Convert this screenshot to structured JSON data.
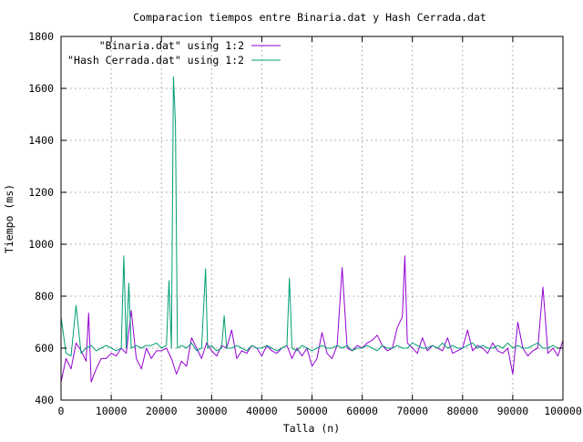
{
  "chart_data": {
    "type": "line",
    "title": "Comparacion tiempos entre Binaria.dat y Hash Cerrada.dat",
    "xlabel": "Talla (n)",
    "ylabel": "Tiempo (ms)",
    "xlim": [
      0,
      100000
    ],
    "ylim": [
      400,
      1800
    ],
    "x_ticks": [
      0,
      10000,
      20000,
      30000,
      40000,
      50000,
      60000,
      70000,
      80000,
      90000,
      100000
    ],
    "y_ticks": [
      400,
      600,
      800,
      1000,
      1200,
      1400,
      1600,
      1800
    ],
    "x_tick_labels": [
      "0",
      "10000",
      "20000",
      "30000",
      "40000",
      "50000",
      "60000",
      "70000",
      "80000",
      "90000",
      "100000"
    ],
    "y_tick_labels": [
      "400",
      "600",
      "800",
      "1000",
      "1200",
      "1400",
      "1600",
      "1800"
    ],
    "grid": true,
    "legend_position": "top-left",
    "series": [
      {
        "name": "\"Binaria.dat\" using 1:2",
        "color": "#9400d3",
        "x": [
          0,
          1000,
          2000,
          3000,
          4000,
          5000,
          5500,
          6000,
          7000,
          8000,
          9000,
          10000,
          11000,
          12000,
          13000,
          14000,
          15000,
          16000,
          17000,
          18000,
          19000,
          20000,
          21000,
          22000,
          23000,
          24000,
          25000,
          26000,
          27000,
          28000,
          29000,
          30000,
          31000,
          32000,
          33000,
          34000,
          35000,
          36000,
          37000,
          38000,
          39000,
          40000,
          41000,
          42000,
          43000,
          44000,
          45000,
          46000,
          47000,
          48000,
          49000,
          50000,
          51000,
          52000,
          53000,
          54000,
          55000,
          56000,
          57000,
          58000,
          59000,
          60000,
          61000,
          62000,
          63000,
          64000,
          65000,
          66000,
          67000,
          68000,
          68500,
          69000,
          70000,
          71000,
          72000,
          73000,
          74000,
          75000,
          76000,
          77000,
          78000,
          79000,
          80000,
          81000,
          82000,
          83000,
          84000,
          85000,
          86000,
          87000,
          88000,
          89000,
          90000,
          91000,
          92000,
          93000,
          94000,
          95000,
          96000,
          97000,
          98000,
          99000,
          100000
        ],
        "values": [
          470,
          560,
          520,
          620,
          590,
          550,
          735,
          470,
          520,
          560,
          560,
          580,
          570,
          600,
          580,
          745,
          560,
          520,
          600,
          560,
          590,
          590,
          600,
          560,
          500,
          550,
          530,
          640,
          600,
          560,
          620,
          590,
          570,
          610,
          600,
          670,
          560,
          590,
          580,
          610,
          600,
          570,
          610,
          590,
          580,
          600,
          610,
          560,
          600,
          570,
          600,
          530,
          560,
          660,
          580,
          560,
          610,
          910,
          600,
          590,
          610,
          600,
          620,
          630,
          650,
          610,
          590,
          600,
          680,
          720,
          955,
          620,
          600,
          580,
          640,
          590,
          610,
          600,
          590,
          640,
          580,
          590,
          600,
          670,
          590,
          610,
          600,
          580,
          620,
          590,
          580,
          600,
          500,
          700,
          600,
          570,
          590,
          600,
          835,
          580,
          600,
          570,
          630
        ]
      },
      {
        "name": "\"Hash Cerrada.dat\" using 1:2",
        "color": "#009e73",
        "x": [
          0,
          1000,
          2000,
          3000,
          4000,
          5000,
          6000,
          7000,
          8000,
          9000,
          10000,
          11000,
          12000,
          12500,
          13000,
          13500,
          14000,
          15000,
          16000,
          17000,
          18000,
          19000,
          20000,
          21000,
          21500,
          22000,
          22400,
          22800,
          23200,
          24000,
          25000,
          26000,
          27000,
          28000,
          28800,
          29200,
          30000,
          31000,
          32000,
          32500,
          33000,
          34000,
          35000,
          36000,
          37000,
          38000,
          39000,
          40000,
          41000,
          42000,
          43000,
          44000,
          45000,
          45500,
          46000,
          47000,
          48000,
          49000,
          50000,
          51000,
          52000,
          53000,
          54000,
          55000,
          56000,
          57000,
          58000,
          59000,
          60000,
          61000,
          62000,
          63000,
          64000,
          65000,
          66000,
          67000,
          68000,
          69000,
          70000,
          71000,
          72000,
          73000,
          74000,
          75000,
          76000,
          77000,
          78000,
          79000,
          80000,
          81000,
          82000,
          83000,
          84000,
          85000,
          86000,
          87000,
          88000,
          89000,
          90000,
          91000,
          92000,
          93000,
          94000,
          95000,
          96000,
          97000,
          98000,
          99000,
          100000
        ],
        "values": [
          720,
          580,
          570,
          765,
          580,
          600,
          610,
          590,
          600,
          610,
          600,
          590,
          600,
          955,
          600,
          850,
          600,
          610,
          600,
          610,
          610,
          620,
          600,
          610,
          860,
          600,
          1645,
          1465,
          600,
          610,
          600,
          620,
          590,
          600,
          905,
          600,
          610,
          590,
          600,
          725,
          600,
          600,
          610,
          600,
          590,
          610,
          600,
          600,
          610,
          600,
          590,
          600,
          610,
          870,
          600,
          590,
          610,
          600,
          590,
          600,
          610,
          600,
          600,
          610,
          600,
          610,
          590,
          600,
          600,
          610,
          600,
          590,
          610,
          600,
          600,
          610,
          600,
          600,
          620,
          610,
          600,
          600,
          610,
          600,
          620,
          600,
          610,
          600,
          600,
          610,
          620,
          600,
          610,
          600,
          600,
          610,
          600,
          620,
          600,
          610,
          600,
          600,
          610,
          620,
          600,
          600,
          610,
          600,
          600
        ]
      }
    ]
  }
}
